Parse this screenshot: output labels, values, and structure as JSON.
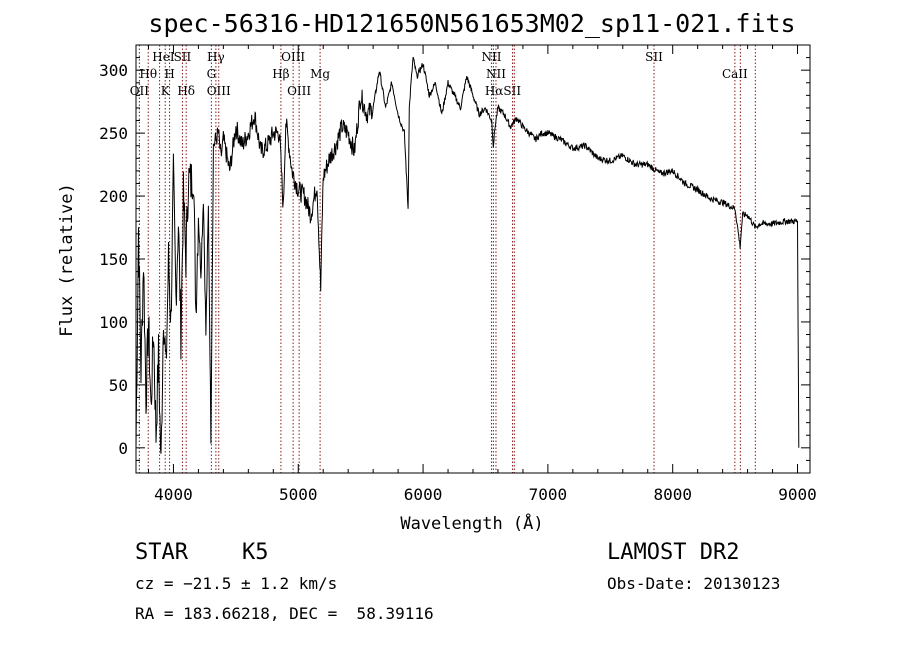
{
  "chart_data": {
    "type": "line",
    "title": "spec-56316-HD121650N561653M02_sp11-021.fits",
    "xlabel": "Wavelength (Å)",
    "ylabel": "Flux (relative)",
    "xlim": [
      3700,
      9100
    ],
    "ylim": [
      -20,
      320
    ],
    "xticks": [
      4000,
      5000,
      6000,
      7000,
      8000,
      9000
    ],
    "yticks": [
      0,
      50,
      100,
      150,
      200,
      250,
      300
    ],
    "grid": false,
    "colors": {
      "spectrum": "#000000",
      "line_markers": "#8b1a1a"
    },
    "series": [
      {
        "x": [
          3700,
          3720,
          3740,
          3760,
          3780,
          3800,
          3820,
          3840,
          3860,
          3880,
          3900,
          3920,
          3940,
          3960,
          3980,
          4000,
          4020,
          4040,
          4060,
          4080,
          4100,
          4120,
          4140,
          4160,
          4180,
          4200,
          4220,
          4240,
          4260,
          4280,
          4300,
          4320,
          4340,
          4360,
          4380,
          4400,
          4450,
          4500,
          4550,
          4600,
          4650,
          4700,
          4750,
          4800,
          4850,
          4880,
          4900,
          4950,
          5000,
          5050,
          5100,
          5150,
          5180,
          5190,
          5200,
          5250,
          5300,
          5350,
          5400,
          5450,
          5500,
          5550,
          5600,
          5650,
          5700,
          5750,
          5800,
          5850,
          5880,
          5890,
          5900,
          5920,
          5950,
          6000,
          6050,
          6100,
          6150,
          6200,
          6250,
          6300,
          6350,
          6400,
          6450,
          6500,
          6550,
          6563,
          6580,
          6600,
          6650,
          6700,
          6750,
          6800,
          6850,
          6900,
          6950,
          7000,
          7100,
          7200,
          7300,
          7400,
          7500,
          7600,
          7700,
          7800,
          7900,
          8000,
          8100,
          8200,
          8300,
          8400,
          8500,
          8540,
          8560,
          8600,
          8662,
          8700,
          8800,
          8900,
          9000,
          9010
        ],
        "values": [
          0,
          175,
          60,
          150,
          40,
          100,
          30,
          95,
          10,
          75,
          -15,
          110,
          60,
          150,
          100,
          215,
          120,
          180,
          90,
          200,
          150,
          215,
          210,
          220,
          110,
          185,
          140,
          200,
          90,
          190,
          10,
          240,
          245,
          250,
          230,
          245,
          220,
          255,
          240,
          250,
          265,
          235,
          240,
          250,
          250,
          190,
          260,
          220,
          205,
          200,
          185,
          210,
          125,
          175,
          215,
          230,
          240,
          255,
          250,
          235,
          280,
          265,
          270,
          300,
          270,
          290,
          265,
          250,
          190,
          270,
          285,
          310,
          295,
          305,
          280,
          290,
          265,
          290,
          280,
          270,
          295,
          280,
          265,
          270,
          260,
          240,
          258,
          270,
          265,
          255,
          262,
          255,
          250,
          245,
          250,
          250,
          245,
          238,
          240,
          230,
          228,
          232,
          225,
          225,
          218,
          220,
          210,
          205,
          198,
          195,
          190,
          160,
          185,
          185,
          175,
          178,
          178,
          180,
          180,
          0
        ]
      }
    ],
    "line_markers": [
      {
        "label": "OII",
        "x": 3727
      },
      {
        "label": "Hθ",
        "x": 3798
      },
      {
        "label": "HeI",
        "x": 3889
      },
      {
        "label": "K",
        "x": 3934
      },
      {
        "label": "H",
        "x": 3969
      },
      {
        "label": "SII",
        "x": 4072
      },
      {
        "label": "Hδ",
        "x": 4102
      },
      {
        "label": "Hγ",
        "x": 4340
      },
      {
        "label": "G",
        "x": 4304
      },
      {
        "label": "OIII",
        "x": 4363
      },
      {
        "label": "Hβ",
        "x": 4861
      },
      {
        "label": "OIII",
        "x": 4959
      },
      {
        "label": "OIII",
        "x": 5007
      },
      {
        "label": "Mg",
        "x": 5175
      },
      {
        "label": "NII",
        "x": 6548
      },
      {
        "label": "NII",
        "x": 6584
      },
      {
        "label": "Hα",
        "x": 6563
      },
      {
        "label": "SII",
        "x": 6717
      },
      {
        "label": "SII",
        "x": 6731
      },
      {
        "label": "SII",
        "x": 7850
      },
      {
        "label": "CaII",
        "x": 8498
      },
      {
        "label": "CaII",
        "x": 8542
      },
      {
        "label": "CaII",
        "x": 8662
      }
    ],
    "line_labels": [
      {
        "text": "OII",
        "x": 3727,
        "row": 3
      },
      {
        "text": "Hθ",
        "x": 3798,
        "row": 2
      },
      {
        "text": "HeI",
        "x": 3920,
        "row": 1
      },
      {
        "text": "K",
        "x": 3934,
        "row": 3
      },
      {
        "text": "H",
        "x": 3969,
        "row": 2
      },
      {
        "text": "SII",
        "x": 4072,
        "row": 1
      },
      {
        "text": "Hδ",
        "x": 4102,
        "row": 3
      },
      {
        "text": "Hγ",
        "x": 4340,
        "row": 1
      },
      {
        "text": "G",
        "x": 4304,
        "row": 2
      },
      {
        "text": "OIII",
        "x": 4363,
        "row": 3
      },
      {
        "text": "Hβ",
        "x": 4861,
        "row": 2
      },
      {
        "text": "OIII",
        "x": 4959,
        "row": 1
      },
      {
        "text": "OIII",
        "x": 5007,
        "row": 3
      },
      {
        "text": "Mg",
        "x": 5175,
        "row": 2
      },
      {
        "text": "NII",
        "x": 6548,
        "row": 1
      },
      {
        "text": "NII",
        "x": 6584,
        "row": 2
      },
      {
        "text": "HαSII",
        "x": 6640,
        "row": 3
      },
      {
        "text": "SII",
        "x": 7850,
        "row": 1
      },
      {
        "text": "CaII",
        "x": 8498,
        "row": 2
      }
    ]
  },
  "info": {
    "object_class": "STAR",
    "subclass": "K5",
    "survey": "LAMOST DR2",
    "cz": "cz = −21.5 ± 1.2 km/s",
    "obs_date": "Obs-Date: 20130123",
    "coords": "RA = 183.66218, DEC =  58.39116"
  }
}
